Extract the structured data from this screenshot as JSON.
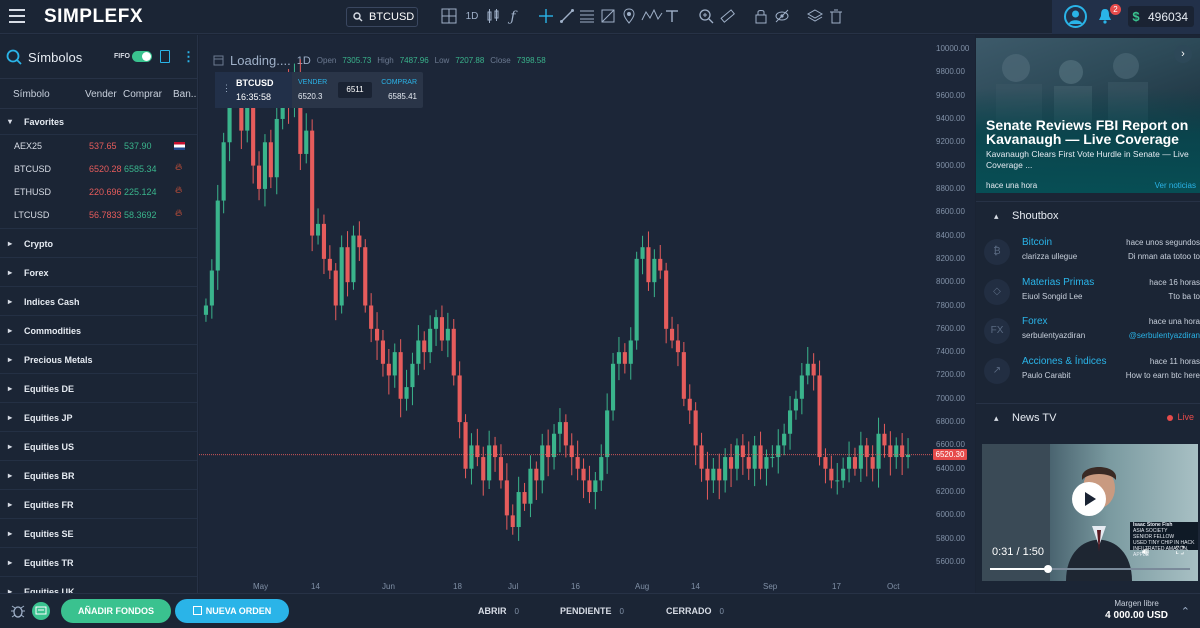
{
  "header": {
    "logo": "SIMPLEFX",
    "symbol_search": "BTCUSD",
    "resolution": "1D",
    "notifications_count": "2",
    "balance_currency": "$",
    "balance": "496034"
  },
  "sidebar": {
    "title": "Símbolos",
    "fifo_label": "FIFO",
    "columns": {
      "symbol": "Símbolo",
      "sell": "Vender",
      "buy": "Comprar",
      "flag": "Ban..."
    },
    "favorites_label": "Favorites",
    "favorites": [
      {
        "name": "AEX25",
        "sell": "537.65",
        "buy": "537.90",
        "icon": "netherlands-flag-icon"
      },
      {
        "name": "BTCUSD",
        "sell": "6520.28",
        "buy": "6585.34",
        "icon": "fire-icon"
      },
      {
        "name": "ETHUSD",
        "sell": "220.696",
        "buy": "225.124",
        "icon": "fire-icon"
      },
      {
        "name": "LTCUSD",
        "sell": "56.7833",
        "buy": "58.3692",
        "icon": "fire-icon"
      }
    ],
    "groups": [
      "Crypto",
      "Forex",
      "Indices Cash",
      "Commodities",
      "Precious Metals",
      "Equities DE",
      "Equities JP",
      "Equities US",
      "Equities BR",
      "Equities FR",
      "Equities SE",
      "Equities TR",
      "Equities UK"
    ]
  },
  "chart_header": {
    "loading": "Loading....",
    "resolution": "1D",
    "open_label": "Open",
    "open": "7305.73",
    "high_label": "High",
    "high": "7487.96",
    "low_label": "Low",
    "low": "7207.88",
    "close_label": "Close",
    "close": "7398.58"
  },
  "trade_panel": {
    "symbol": "BTCUSD",
    "time": "16:35:58",
    "sell_label": "VENDER",
    "sell": "6520.3",
    "mid": "6511",
    "buy_label": "COMPRAR",
    "buy": "6585.41"
  },
  "chart_data": {
    "type": "candlestick",
    "series_color_up": "#3ab48c",
    "series_color_down": "#e65c5c",
    "y_ticks": [
      "10000.00",
      "9800.00",
      "9600.00",
      "9400.00",
      "9200.00",
      "9000.00",
      "8800.00",
      "8600.00",
      "8400.00",
      "8200.00",
      "8000.00",
      "7800.00",
      "7600.00",
      "7400.00",
      "7200.00",
      "7000.00",
      "6800.00",
      "6600.00",
      "6400.00",
      "6200.00",
      "6000.00",
      "5800.00",
      "5600.00"
    ],
    "x_ticks": [
      "May",
      "14",
      "Jun",
      "18",
      "Jul",
      "16",
      "Aug",
      "14",
      "Sep",
      "17",
      "Oct"
    ],
    "ylim": [
      5600,
      10000
    ],
    "current_price": "6520.30",
    "closes": [
      7800,
      8100,
      8700,
      9200,
      9600,
      9700,
      9300,
      9600,
      9000,
      8800,
      9200,
      8900,
      9400,
      9700,
      9500,
      9800,
      9100,
      9300,
      8400,
      8500,
      8200,
      8100,
      7800,
      8300,
      8000,
      8400,
      8300,
      7800,
      7600,
      7500,
      7300,
      7200,
      7400,
      7000,
      7100,
      7300,
      7500,
      7400,
      7600,
      7700,
      7500,
      7600,
      7200,
      6800,
      6400,
      6600,
      6500,
      6300,
      6600,
      6500,
      6300,
      6000,
      5900,
      6200,
      6100,
      6400,
      6300,
      6600,
      6500,
      6700,
      6800,
      6600,
      6500,
      6400,
      6300,
      6200,
      6300,
      6500,
      6900,
      7300,
      7400,
      7300,
      7500,
      8200,
      8300,
      8000,
      8200,
      8100,
      7600,
      7500,
      7400,
      7000,
      6900,
      6600,
      6400,
      6300,
      6400,
      6300,
      6500,
      6400,
      6600,
      6500,
      6400,
      6600,
      6400,
      6500,
      6500,
      6600,
      6700,
      6900,
      7000,
      7200,
      7300,
      7200,
      6500,
      6400,
      6300,
      6300,
      6400,
      6500,
      6400,
      6600,
      6500,
      6400,
      6700,
      6600,
      6500,
      6600,
      6500,
      6520
    ]
  },
  "news": {
    "title": "Senate Reviews FBI Report on Kavanaugh — Live Coverage",
    "subtitle": "Kavanaugh Clears First Vote Hurdle in Senate — Live Coverage ...",
    "time": "hace una hora",
    "more": "Ver noticias"
  },
  "shoutbox": {
    "title": "Shoutbox",
    "items": [
      {
        "topic": "Bitcoin",
        "user": "clarizza ullegue",
        "time": "hace unos segundos",
        "message": "Di nman ata totoo to",
        "icon": "bitcoin-icon",
        "link": false
      },
      {
        "topic": "Materias Primas",
        "user": "Eiuol Songid Lee",
        "time": "hace 16 horas",
        "message": "Tto ba to",
        "icon": "diamond-icon",
        "link": false
      },
      {
        "topic": "Forex",
        "user": "serbulentyazdiran",
        "time": "hace una hora",
        "message": "@serbulentyazdiran",
        "icon": "fx-icon",
        "link": true
      },
      {
        "topic": "Acciones & Índices",
        "user": "Paulo Carabit",
        "time": "hace 11 horas",
        "message": "How to earn btc here",
        "icon": "trend-icon",
        "link": false
      }
    ]
  },
  "news_tv": {
    "title": "News TV",
    "live": "Live",
    "video_time": "0:31 / 1:50",
    "lower_third": [
      "Isaac Stone Fish",
      "ASIA SOCIETY",
      "SENIOR FELLOW",
      "USED TINY CHIP IN HACK",
      "INFILTRATED AMAZON, APPLE"
    ]
  },
  "bottombar": {
    "add_funds": "AÑADIR FONDOS",
    "new_order": "NUEVA ORDEN",
    "tabs": [
      {
        "label": "ABRIR",
        "count": "0"
      },
      {
        "label": "PENDIENTE",
        "count": "0"
      },
      {
        "label": "CERRADO",
        "count": "0"
      }
    ],
    "margin_label": "Margen libre",
    "margin_value": "4 000.00 USD"
  }
}
